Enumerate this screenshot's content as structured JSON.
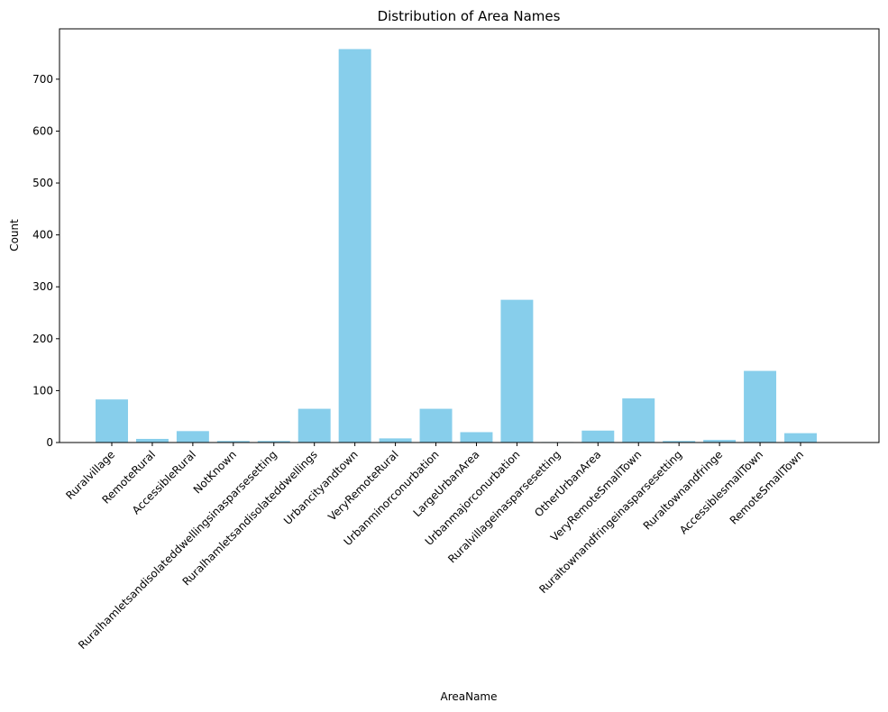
{
  "chart_data": {
    "type": "bar",
    "title": "Distribution of Area Names",
    "x_label": "AreaName",
    "y_label": "Count",
    "categories": [
      "Ruralvillage",
      "RemoteRural",
      "AccessibleRural",
      "NotKnown",
      "Ruralhamletsandisolateddwellingsinasparsesetting",
      "Ruralhamletsandisolateddwellings",
      "Urbancityandtown",
      "VeryRemoteRural",
      "Urbanminorconurbation",
      "LargeUrbanArea",
      "Urbanmajorconurbation",
      "Ruralvillageinasparsesetting",
      "OtherUrbanArea",
      "VeryRemoteSmallTown",
      "Ruraltownandfringeinasparsesetting",
      "Ruraltownandfringe",
      "AccessiblesmallTown",
      "RemoteSmallTown"
    ],
    "values": [
      83,
      7,
      22,
      3,
      3,
      65,
      758,
      8,
      65,
      20,
      275,
      1,
      23,
      85,
      3,
      5,
      138,
      18
    ],
    "color": "#87ceeb",
    "ylim": [
      0,
      797
    ],
    "yticks": [
      0,
      100,
      200,
      300,
      400,
      500,
      600,
      700
    ],
    "grid": false
  }
}
